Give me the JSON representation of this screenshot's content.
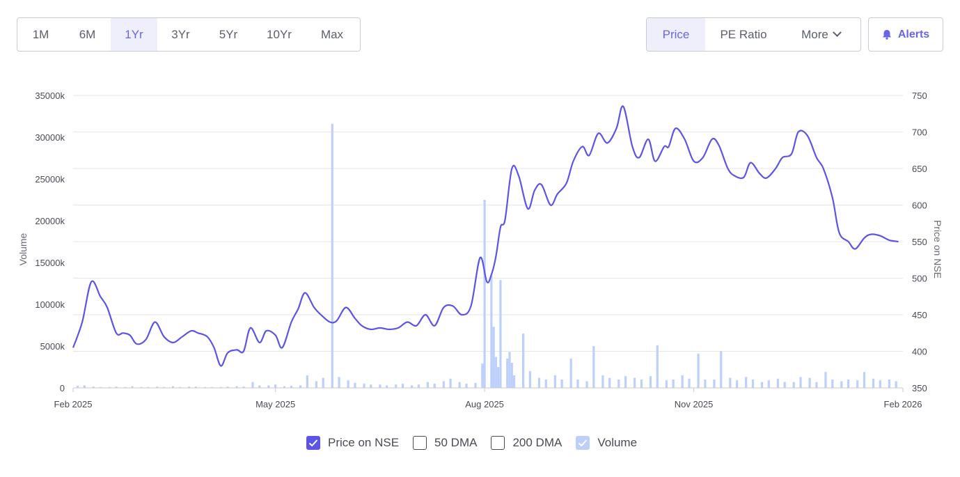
{
  "period_tabs": [
    {
      "label": "1M",
      "active": false
    },
    {
      "label": "6M",
      "active": false
    },
    {
      "label": "1Yr",
      "active": true
    },
    {
      "label": "3Yr",
      "active": false
    },
    {
      "label": "5Yr",
      "active": false
    },
    {
      "label": "10Yr",
      "active": false
    },
    {
      "label": "Max",
      "active": false
    }
  ],
  "metric_tabs": [
    {
      "label": "Price",
      "active": true
    },
    {
      "label": "PE Ratio",
      "active": false
    },
    {
      "label": "More",
      "active": false
    }
  ],
  "alerts_label": "Alerts",
  "legend": [
    {
      "label": "Price on NSE",
      "checked": true,
      "color": "#5b54e6"
    },
    {
      "label": "50 DMA",
      "checked": false
    },
    {
      "label": "200 DMA",
      "checked": false
    },
    {
      "label": "Volume",
      "checked": true,
      "color": "#bcd0fb"
    }
  ],
  "colors": {
    "accent": "#6a64e8",
    "price_line": "#5b54e6",
    "volume_bar": "#bcd0fb",
    "grid": "#e6e6ea"
  },
  "chart_data": {
    "type": "line",
    "x_tick_labels": [
      "Feb 2025",
      "May 2025",
      "Aug 2025",
      "Nov 2025",
      "Feb 2026"
    ],
    "x_range": [
      "2025-02-01",
      "2026-02-01"
    ],
    "y_left": {
      "label": "Volume",
      "min": 0,
      "max": 35000,
      "ticks": [
        "0",
        "5000k",
        "10000k",
        "15000k",
        "20000k",
        "25000k",
        "30000k",
        "35000k"
      ]
    },
    "y_right": {
      "label": "Price on NSE",
      "min": 350,
      "max": 750,
      "ticks": [
        "350",
        "400",
        "450",
        "500",
        "550",
        "600",
        "650",
        "700",
        "750"
      ]
    },
    "grid": true,
    "legend_position": "bottom",
    "price": {
      "name": "Price on NSE",
      "x": [
        "2025-02-01",
        "2025-02-05",
        "2025-02-09",
        "2025-02-13",
        "2025-02-16",
        "2025-02-20",
        "2025-02-23",
        "2025-02-26",
        "2025-03-01",
        "2025-03-05",
        "2025-03-09",
        "2025-03-13",
        "2025-03-17",
        "2025-03-21",
        "2025-03-25",
        "2025-03-28",
        "2025-04-01",
        "2025-04-04",
        "2025-04-07",
        "2025-04-10",
        "2025-04-14",
        "2025-04-17",
        "2025-04-20",
        "2025-04-24",
        "2025-04-27",
        "2025-05-01",
        "2025-05-04",
        "2025-05-08",
        "2025-05-11",
        "2025-05-14",
        "2025-05-18",
        "2025-05-21",
        "2025-05-25",
        "2025-05-28",
        "2025-06-01",
        "2025-06-05",
        "2025-06-08",
        "2025-06-12",
        "2025-06-16",
        "2025-06-20",
        "2025-06-24",
        "2025-06-28",
        "2025-07-02",
        "2025-07-06",
        "2025-07-10",
        "2025-07-14",
        "2025-07-18",
        "2025-07-22",
        "2025-07-26",
        "2025-07-30",
        "2025-08-02",
        "2025-08-04",
        "2025-08-06",
        "2025-08-08",
        "2025-08-10",
        "2025-08-13",
        "2025-08-16",
        "2025-08-20",
        "2025-08-23",
        "2025-08-26",
        "2025-08-30",
        "2025-09-02",
        "2025-09-06",
        "2025-09-09",
        "2025-09-13",
        "2025-09-16",
        "2025-09-20",
        "2025-09-24",
        "2025-09-28",
        "2025-10-01",
        "2025-10-05",
        "2025-10-08",
        "2025-10-12",
        "2025-10-15",
        "2025-10-19",
        "2025-10-21",
        "2025-10-24",
        "2025-10-28",
        "2025-11-01",
        "2025-11-05",
        "2025-11-09",
        "2025-11-12",
        "2025-11-16",
        "2025-11-19",
        "2025-11-23",
        "2025-11-26",
        "2025-11-30",
        "2025-12-03",
        "2025-12-07",
        "2025-12-10",
        "2025-12-14",
        "2025-12-17",
        "2025-12-21",
        "2025-12-25",
        "2025-12-28",
        "2026-01-01",
        "2026-01-04",
        "2026-01-08",
        "2026-01-11",
        "2026-01-15",
        "2026-01-18",
        "2026-01-22",
        "2026-01-26",
        "2026-01-30"
      ],
      "y": [
        405,
        440,
        495,
        475,
        460,
        425,
        425,
        422,
        410,
        416,
        440,
        420,
        412,
        420,
        428,
        425,
        420,
        405,
        380,
        398,
        402,
        400,
        432,
        412,
        428,
        422,
        405,
        440,
        458,
        480,
        460,
        450,
        440,
        442,
        460,
        445,
        435,
        430,
        432,
        430,
        432,
        440,
        435,
        450,
        435,
        460,
        462,
        450,
        462,
        528,
        495,
        505,
        530,
        570,
        580,
        650,
        640,
        595,
        620,
        628,
        600,
        615,
        630,
        660,
        680,
        668,
        698,
        685,
        705,
        735,
        680,
        665,
        690,
        660,
        680,
        680,
        705,
        690,
        660,
        665,
        690,
        682,
        650,
        640,
        638,
        658,
        643,
        637,
        650,
        665,
        670,
        700,
        695,
        665,
        650,
        610,
        562,
        550,
        540,
        555,
        560,
        558,
        552,
        550
      ]
    },
    "volume": {
      "name": "Volume",
      "unit": "thousand shares",
      "x": [
        "2025-02-03",
        "2025-02-06",
        "2025-02-10",
        "2025-02-13",
        "2025-02-17",
        "2025-02-20",
        "2025-02-24",
        "2025-02-27",
        "2025-03-03",
        "2025-03-06",
        "2025-03-10",
        "2025-03-13",
        "2025-03-17",
        "2025-03-20",
        "2025-03-24",
        "2025-03-27",
        "2025-03-31",
        "2025-04-03",
        "2025-04-07",
        "2025-04-10",
        "2025-04-14",
        "2025-04-17",
        "2025-04-21",
        "2025-04-24",
        "2025-04-28",
        "2025-05-01",
        "2025-05-05",
        "2025-05-08",
        "2025-05-12",
        "2025-05-15",
        "2025-05-19",
        "2025-05-22",
        "2025-05-26",
        "2025-05-29",
        "2025-06-02",
        "2025-06-05",
        "2025-06-09",
        "2025-06-12",
        "2025-06-16",
        "2025-06-19",
        "2025-06-23",
        "2025-06-26",
        "2025-06-30",
        "2025-07-03",
        "2025-07-07",
        "2025-07-10",
        "2025-07-14",
        "2025-07-17",
        "2025-07-21",
        "2025-07-24",
        "2025-07-28",
        "2025-07-31",
        "2025-08-01",
        "2025-08-04",
        "2025-08-05",
        "2025-08-06",
        "2025-08-07",
        "2025-08-08",
        "2025-08-11",
        "2025-08-12",
        "2025-08-13",
        "2025-08-14",
        "2025-08-18",
        "2025-08-21",
        "2025-08-25",
        "2025-08-28",
        "2025-09-01",
        "2025-09-04",
        "2025-09-08",
        "2025-09-11",
        "2025-09-15",
        "2025-09-18",
        "2025-09-22",
        "2025-09-25",
        "2025-09-29",
        "2025-10-02",
        "2025-10-06",
        "2025-10-09",
        "2025-10-13",
        "2025-10-16",
        "2025-10-20",
        "2025-10-23",
        "2025-10-27",
        "2025-10-30",
        "2025-11-03",
        "2025-11-06",
        "2025-11-10",
        "2025-11-13",
        "2025-11-17",
        "2025-11-20",
        "2025-11-24",
        "2025-11-27",
        "2025-12-01",
        "2025-12-04",
        "2025-12-08",
        "2025-12-11",
        "2025-12-15",
        "2025-12-18",
        "2025-12-22",
        "2025-12-25",
        "2025-12-29",
        "2026-01-01",
        "2026-01-05",
        "2026-01-08",
        "2026-01-12",
        "2026-01-15",
        "2026-01-19",
        "2026-01-22",
        "2026-01-26",
        "2026-01-29"
      ],
      "y": [
        250,
        300,
        150,
        100,
        100,
        150,
        100,
        200,
        100,
        100,
        150,
        100,
        200,
        100,
        150,
        150,
        100,
        100,
        100,
        150,
        200,
        150,
        700,
        300,
        300,
        400,
        200,
        250,
        300,
        1500,
        800,
        1200,
        31600,
        1300,
        900,
        600,
        500,
        400,
        400,
        300,
        400,
        500,
        300,
        400,
        700,
        500,
        800,
        1100,
        700,
        500,
        600,
        2900,
        22500,
        13400,
        7300,
        3700,
        2500,
        12900,
        3500,
        4300,
        3000,
        1500,
        6500,
        2000,
        1200,
        1000,
        1500,
        1000,
        3500,
        1000,
        800,
        5000,
        1500,
        1200,
        1000,
        1400,
        1200,
        1000,
        1400,
        5100,
        900,
        1000,
        1500,
        1100,
        4100,
        1000,
        1000,
        4400,
        1200,
        900,
        1300,
        1000,
        700,
        900,
        1100,
        700,
        700,
        1300,
        1200,
        700,
        1900,
        1000,
        800,
        1000,
        900,
        1900,
        1100,
        900,
        1000,
        800
      ]
    }
  }
}
